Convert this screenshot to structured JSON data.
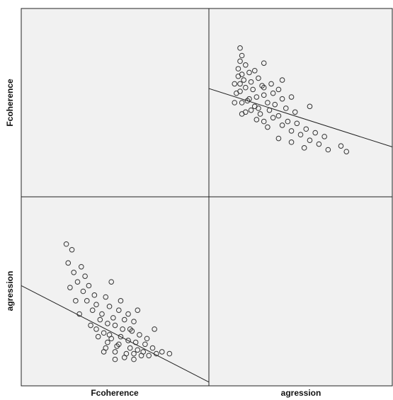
{
  "chart_data": {
    "type": "scatter-matrix",
    "series": [
      {
        "name": "Fcoherence",
        "values": [
          45,
          50,
          55,
          60,
          48,
          52,
          58,
          62,
          65,
          40,
          44,
          47,
          53,
          57,
          61,
          66,
          70,
          42,
          46,
          50,
          54,
          59,
          63,
          38,
          43,
          49,
          55,
          60,
          35,
          40,
          47,
          52,
          33,
          39,
          45,
          30,
          36,
          28,
          34,
          25,
          32,
          27,
          24,
          56,
          64,
          68,
          72,
          75,
          51,
          46,
          41,
          37,
          31,
          29,
          26,
          58,
          53,
          62,
          48,
          44,
          79,
          67,
          71,
          57,
          50,
          60
        ]
      },
      {
        "name": "agression",
        "values": [
          20,
          18,
          15,
          17,
          25,
          22,
          20,
          19,
          18,
          30,
          28,
          27,
          26,
          24,
          23,
          22,
          20,
          35,
          33,
          32,
          30,
          29,
          27,
          40,
          38,
          36,
          35,
          34,
          45,
          43,
          42,
          40,
          50,
          48,
          47,
          55,
          53,
          60,
          58,
          65,
          63,
          72,
          75,
          17,
          16,
          16,
          17,
          18,
          21,
          23,
          26,
          32,
          38,
          45,
          52,
          30,
          45,
          40,
          55,
          18,
          17,
          25,
          30,
          38,
          14,
          14
        ]
      }
    ],
    "xlim": [
      0,
      100
    ],
    "ylim": [
      0,
      100
    ],
    "fit_lines": [
      {
        "intercept": 53,
        "slope": -0.51
      },
      {
        "intercept": 57.5,
        "slope": -0.31
      }
    ],
    "color": "#333333"
  }
}
